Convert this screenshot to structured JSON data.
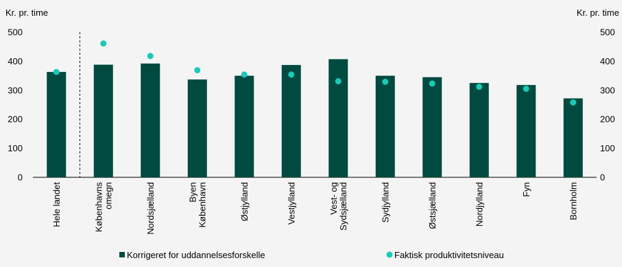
{
  "chart_data": {
    "type": "bar",
    "ylabel_left": "Kr. pr. time",
    "ylabel_right": "Kr. pr. time",
    "ylim": [
      0,
      500
    ],
    "yticks": [
      0,
      100,
      200,
      300,
      400,
      500
    ],
    "grid": false,
    "legend_position": "bottom",
    "categories": [
      [
        "Hele landet"
      ],
      [
        "Københavns",
        "omegn"
      ],
      [
        "Nordsjælland"
      ],
      [
        "Byen",
        "København"
      ],
      [
        "Østjylland"
      ],
      [
        "Vestjylland"
      ],
      [
        "Vest- og",
        "Sydsjælland"
      ],
      [
        "Sydjylland"
      ],
      [
        "Østsjælland"
      ],
      [
        "Nordjylland"
      ],
      [
        "Fyn"
      ],
      [
        "Bornholm"
      ]
    ],
    "series": [
      {
        "name": "Korrigeret for uddannelsesforskelle",
        "type": "bar",
        "color": "#004a3f",
        "values": [
          363,
          388,
          392,
          337,
          350,
          387,
          407,
          350,
          345,
          325,
          318,
          272
        ]
      },
      {
        "name": "Faktisk produktivitetsniveau",
        "type": "scatter",
        "color": "#1ac9b6",
        "values": [
          363,
          461,
          418,
          369,
          354,
          354,
          331,
          329,
          323,
          312,
          305,
          258
        ]
      }
    ]
  }
}
